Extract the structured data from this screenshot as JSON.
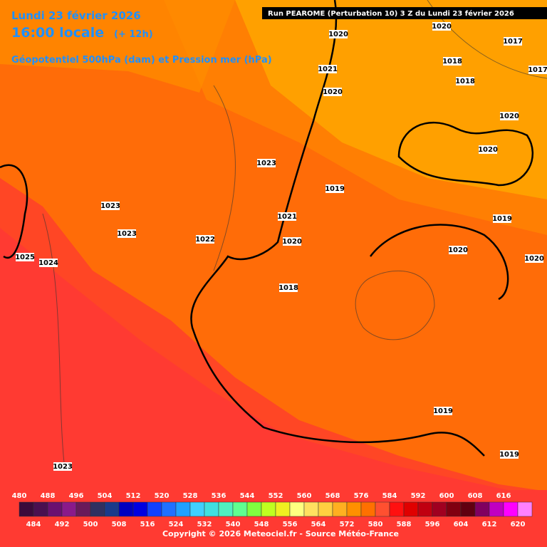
{
  "header": {
    "date": "Lundi 23 février 2026",
    "time": "16:00 locale",
    "lead": "(+ 12h)",
    "subtitle": "Géopotentiel 500hPa (dam) et Pression mer (hPa)",
    "run": "Run PEAROME (Perturbation 10) 3 Z du Lundi 23 février 2026"
  },
  "isobar_labels": [
    "1020",
    "1020",
    "1017",
    "1018",
    "1017",
    "1021",
    "1020",
    "1018",
    "1020",
    "1020",
    "1023",
    "1019",
    "1023",
    "1019",
    "1021",
    "1023",
    "1022",
    "1020",
    "1020",
    "1025",
    "1024",
    "1020",
    "1018",
    "1019",
    "1019",
    "1023"
  ],
  "scale": {
    "top_labels": [
      "480",
      "488",
      "496",
      "504",
      "512",
      "520",
      "528",
      "536",
      "544",
      "552",
      "560",
      "568",
      "576",
      "584",
      "592",
      "600",
      "608",
      "616"
    ],
    "bottom_labels": [
      "484",
      "492",
      "500",
      "508",
      "516",
      "524",
      "532",
      "540",
      "548",
      "556",
      "564",
      "572",
      "580",
      "588",
      "596",
      "604",
      "612",
      "620"
    ],
    "colors": [
      "#3b0a3b",
      "#4a1050",
      "#6a1070",
      "#8a1a8a",
      "#6a1a5a",
      "#303060",
      "#1a3a8a",
      "#0000c0",
      "#0000e0",
      "#1040ff",
      "#2070ff",
      "#20a0ff",
      "#40d0ff",
      "#40e0e0",
      "#50f0c0",
      "#60ff90",
      "#80ff40",
      "#c0ff20",
      "#f0f020",
      "#ffff80",
      "#ffe060",
      "#ffd040",
      "#ffb020",
      "#ff9000",
      "#ff7000",
      "#ff5030",
      "#ff1010",
      "#e00000",
      "#c00010",
      "#a00020",
      "#800010",
      "#600010",
      "#800060",
      "#c000c0",
      "#ff00ff",
      "#ff80ff"
    ]
  },
  "copyright": "Copyright © 2026 Meteociel.fr - Source Météo-France"
}
